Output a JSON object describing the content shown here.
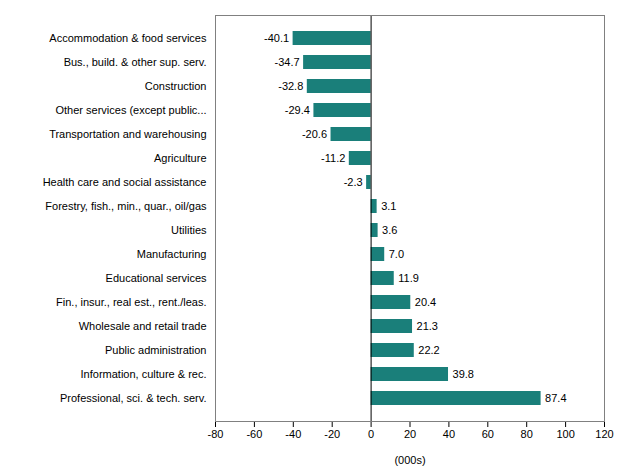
{
  "chart_data": {
    "type": "bar",
    "orientation": "horizontal",
    "categories": [
      "Professional, sci. & tech. serv.",
      "Information, culture & rec.",
      "Public administration",
      "Wholesale and retail trade",
      "Fin., insur., real est., rent./leas.",
      "Educational services",
      "Manufacturing",
      "Utilities",
      "Forestry, fish., min., quar., oil/gas",
      "Health care and social assistance",
      "Agriculture",
      "Transportation and warehousing",
      "Other services (except public...",
      "Construction",
      "Bus., build. & other sup. serv.",
      "Accommodation & food services"
    ],
    "values": [
      87.4,
      39.8,
      22.2,
      21.3,
      20.4,
      11.9,
      7.0,
      3.6,
      3.1,
      -2.3,
      -11.2,
      -20.6,
      -29.4,
      -32.8,
      -34.7,
      -40.1
    ],
    "value_labels": [
      "87.4",
      "39.8",
      "22.2",
      "21.3",
      "20.4",
      "11.9",
      "7.0",
      "3.6",
      "3.1",
      "-2.3",
      "-11.2",
      "-20.6",
      "-29.4",
      "-32.8",
      "-34.7",
      "-40.1"
    ],
    "data_labels": true,
    "color": "#1a7f7a",
    "xlabel": "(000s)",
    "xlim": [
      -80,
      120
    ],
    "xticks": [
      -80,
      -60,
      -40,
      -20,
      0,
      20,
      40,
      60,
      80,
      100,
      120
    ],
    "grid": false
  }
}
